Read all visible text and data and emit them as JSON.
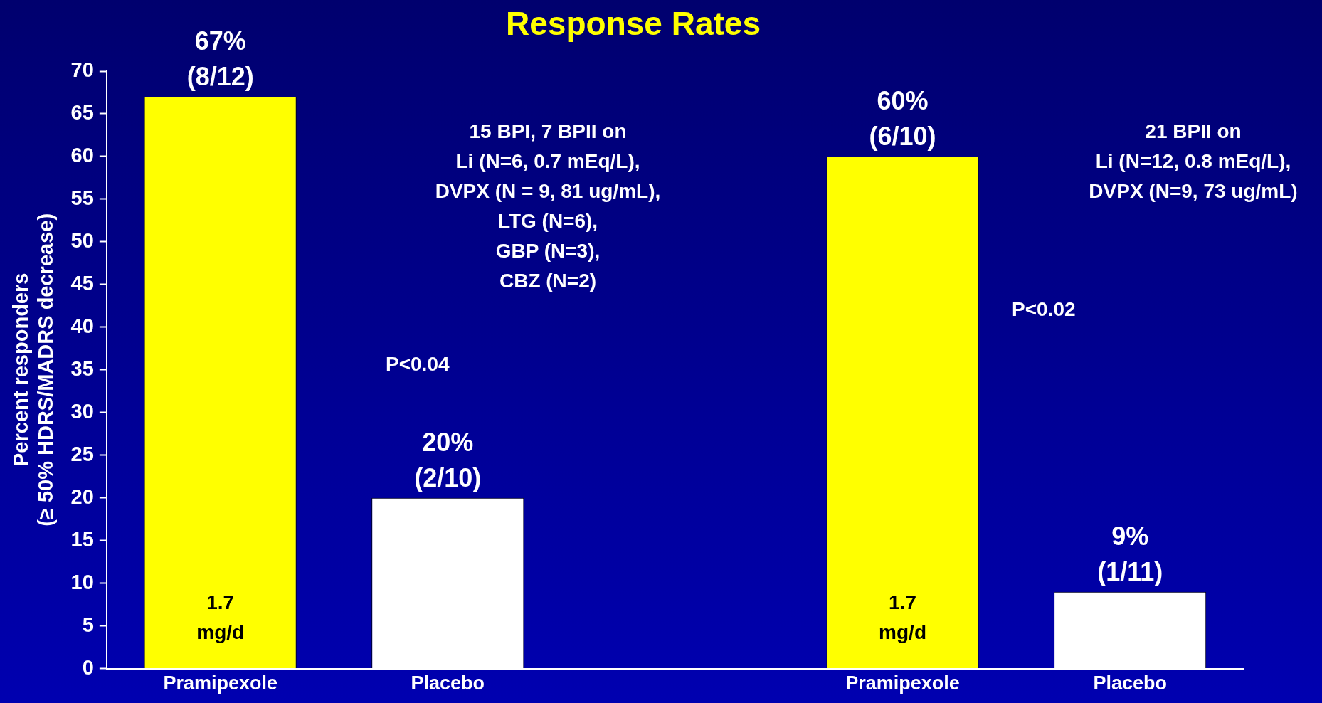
{
  "chart_data": {
    "type": "bar",
    "title": "Response Rates",
    "ylabel": "Percent responders (≥ 50% HDRS/MADRS decrease)",
    "categories": [
      "Pramipexole",
      "Placebo",
      null,
      "Pramipexole",
      "Placebo"
    ],
    "values": [
      67,
      20,
      null,
      60,
      9
    ],
    "colors": [
      "#ffff00",
      "#ffffff",
      "#ffffff",
      "#ffff00",
      "#ffffff"
    ],
    "value_labels": [
      "67% (8/12)",
      "20% (2/10)",
      null,
      "60% (6/10)",
      "9% (1/11)"
    ],
    "ylim": [
      0,
      70
    ],
    "yticks": [
      0,
      5,
      10,
      15,
      20,
      25,
      30,
      35,
      40,
      45,
      50,
      55,
      60,
      65,
      70
    ],
    "grid": false,
    "legend": false,
    "annotations": [
      "1.7\nmg/d",
      "1.7\nmg/d",
      "15 BPI, 7 BPII on\nLi (N=6, 0.7 mEq/L),\nDVPX (N = 9, 81 ug/mL),\nLTG (N=6),\nGBP (N=3),\nCBZ (N=2)",
      "P<0.04",
      "21 BPII on\nLi (N=12, 0.8 mEq/L),\nDVPX (N=9, 73 ug/mL)",
      "P<0.02"
    ]
  }
}
